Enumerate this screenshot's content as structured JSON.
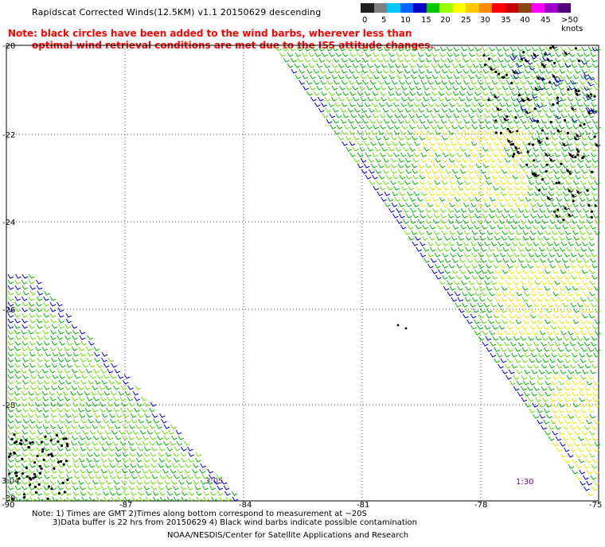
{
  "title": "Rapidscat Corrected Winds(12.5KM) v1.1 20150629 descending",
  "note_line1": "Note: black circles have been added to the wind barbs, wherever less than",
  "note_line2": "optimal wind retrieval conditions are met due to the ISS attitude changes.",
  "legend": {
    "unit": "knots",
    "colors": [
      "#202020",
      "#808080",
      "#00c8ff",
      "#0064ff",
      "#0000c8",
      "#00c800",
      "#96ff00",
      "#ffff00",
      "#ffc800",
      "#ff8c00",
      "#ff0000",
      "#c80000",
      "#8b4513",
      "#ff00ff",
      "#a000c8",
      "#500078"
    ],
    "labels": [
      "0",
      "5",
      "10",
      "15",
      "20",
      "25",
      "30",
      "35",
      "40",
      "45",
      ">50 knots"
    ]
  },
  "map": {
    "lat_ticks": [
      "-20",
      "-22",
      "-24",
      "-26",
      "-28",
      "-30"
    ],
    "lon_ticks": [
      "-90",
      "-87",
      "-84",
      "-81",
      "-78",
      "-75"
    ],
    "time_labels": [
      "3:04",
      "3:05",
      "1:30"
    ]
  },
  "footer": {
    "line1": "Note: 1) Times are GMT 2)Times along bottom correspond to measurement at ~20S",
    "line2": "3)Data buffer is 22 hrs from 20150629 4) Black wind barbs indicate possible contamination",
    "line3": "NOAA/NESDIS/Center for Satellite Applications and Research"
  }
}
